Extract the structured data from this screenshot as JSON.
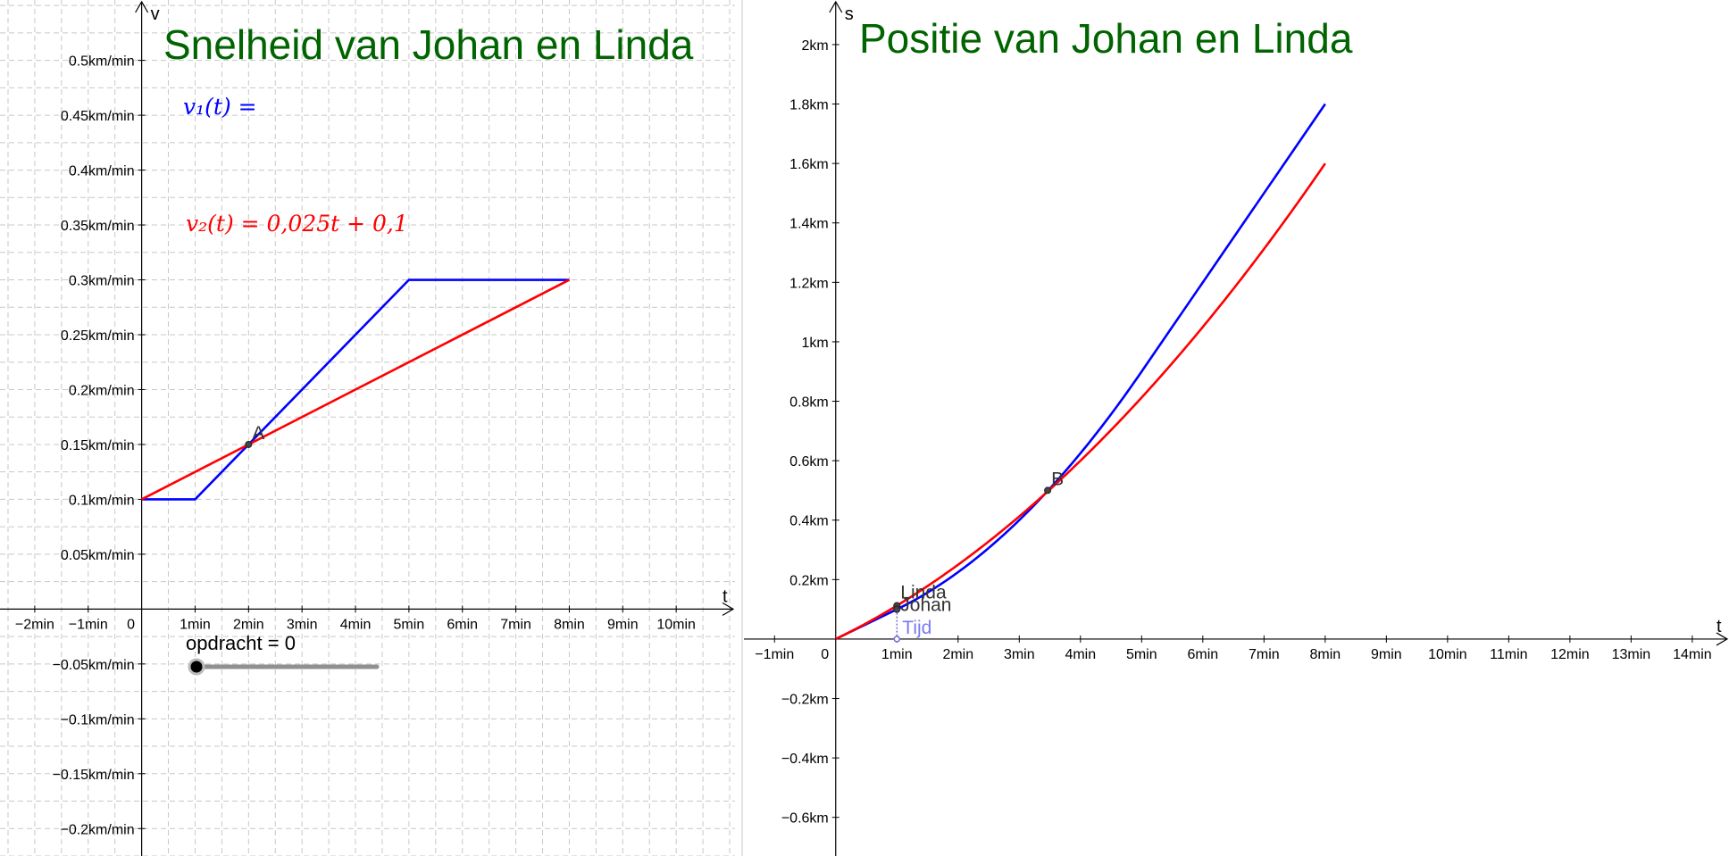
{
  "chart_data": [
    {
      "type": "line",
      "title": "Snelheid van Johan en Linda",
      "xlabel": "t",
      "ylabel": "v",
      "x_ticks": [
        "−2min",
        "−1min",
        "0",
        "1min",
        "2min",
        "3min",
        "4min",
        "5min",
        "6min",
        "7min",
        "8min",
        "9min",
        "10min"
      ],
      "y_ticks": [
        "0.5km/min",
        "0.45km/min",
        "0.4km/min",
        "0.35km/min",
        "0.3km/min",
        "0.25km/min",
        "0.2km/min",
        "0.15km/min",
        "0.1km/min",
        "0.05km/min",
        "−0.05km/min",
        "−0.1km/min",
        "−0.15km/min",
        "−0.2km/min"
      ],
      "xlim": [
        -2.65,
        11.1
      ],
      "ylim": [
        -0.225,
        0.555
      ],
      "grid": true,
      "formulas": [
        {
          "text": "v₁(t) =",
          "color": "#0000ff"
        },
        {
          "text": "v₂(t) = 0,025t + 0,1",
          "color": "#ff0000"
        }
      ],
      "series": [
        {
          "color": "#0000ff",
          "x": [
            0,
            1,
            5,
            8
          ],
          "y": [
            0.1,
            0.1,
            0.3,
            0.3
          ]
        },
        {
          "color": "#ff0000",
          "x": [
            0,
            8
          ],
          "y": [
            0.1,
            0.3
          ]
        }
      ],
      "points": [
        {
          "label": "A",
          "x": 2,
          "y": 0.15
        }
      ]
    },
    {
      "type": "line",
      "title": "Positie van Johan en Linda",
      "xlabel": "t",
      "ylabel": "s",
      "x_ticks": [
        "−1min",
        "0",
        "1min",
        "2min",
        "3min",
        "4min",
        "5min",
        "6min",
        "7min",
        "8min",
        "9min",
        "10min",
        "11min",
        "12min",
        "13min",
        "14min"
      ],
      "y_ticks": [
        "2km",
        "1.8km",
        "1.6km",
        "1.4km",
        "1.2km",
        "1km",
        "0.8km",
        "0.6km",
        "0.4km",
        "0.2km",
        "−0.2km",
        "−0.4km",
        "−0.6km"
      ],
      "xlim": [
        -1.5,
        14.6
      ],
      "ylim": [
        -0.73,
        2.15
      ],
      "grid": false,
      "series": [
        {
          "color": "#0000ff",
          "x": [
            0,
            1,
            2,
            3,
            3.464,
            4,
            5,
            6,
            7,
            8
          ],
          "y": [
            0,
            0.1,
            0.225,
            0.4,
            0.5,
            0.625,
            0.9,
            1.2,
            1.5,
            1.8
          ]
        },
        {
          "color": "#ff0000",
          "x": [
            0,
            1,
            2,
            3,
            3.464,
            4,
            5,
            6,
            7,
            8
          ],
          "y": [
            0,
            0.1125,
            0.25,
            0.4125,
            0.5,
            0.6,
            0.8125,
            1.05,
            1.3125,
            1.6
          ]
        }
      ],
      "points": [
        {
          "label": "B",
          "x": 3.464,
          "y": 0.5
        },
        {
          "label": "Linda",
          "x": 1,
          "y": 0.1125
        },
        {
          "label": "Johan",
          "x": 1,
          "y": 0.1
        },
        {
          "label": "Tijd",
          "x": 1,
          "y": 0
        }
      ]
    }
  ],
  "slider": {
    "label": "opdracht = 0",
    "value": 0
  }
}
